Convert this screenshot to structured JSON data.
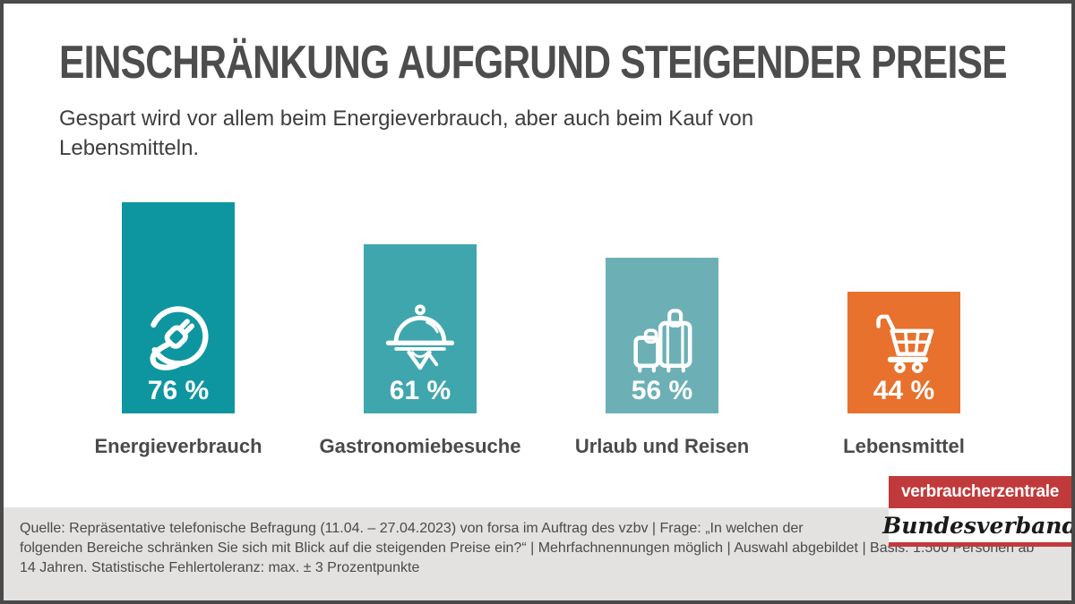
{
  "chart_data": {
    "type": "bar",
    "title": "EINSCHRÄNKUNG AUFGRUND STEIGENDER PREISE",
    "subtitle": "Gespart wird vor allem beim Energieverbrauch, aber auch beim Kauf von Lebensmitteln.",
    "categories": [
      "Energieverbrauch",
      "Gastronomiebesuche",
      "Urlaub und Reisen",
      "Lebensmittel"
    ],
    "values": [
      76,
      61,
      56,
      44
    ],
    "value_labels": [
      "76 %",
      "61 %",
      "56 %",
      "44 %"
    ],
    "unit": "%",
    "ylim": [
      0,
      100
    ],
    "grid": false,
    "legend": false,
    "bar_colors": [
      "#0e96a0",
      "#40a6ad",
      "#6cb0b6",
      "#e7712d"
    ],
    "icons": [
      "power-plug-icon",
      "serving-cloche-icon",
      "luggage-icon",
      "shopping-cart-icon"
    ]
  },
  "footer": {
    "source_text": "Quelle: Repräsentative telefonische Befragung (11.04. – 27.04.2023) von forsa im Auftrag des vzbv | Frage: „In welchen der folgenden Bereiche schränken Sie sich mit Blick auf die steigenden Preise ein?“ | Mehrfachnennungen möglich | Auswahl abgebildet | Basis: 1.500 Personen ab 14 Jahren. Statistische Fehlertoleranz: max. ± 3 Prozentpunkte",
    "background_color": "#e3e2e1"
  },
  "logo": {
    "line1": "verbraucherzentrale",
    "line2": "Bundesverband",
    "brand_red": "#c13a3b"
  },
  "colors": {
    "title_text": "#4d4d4d",
    "frame_border": "#4a4a4a"
  }
}
